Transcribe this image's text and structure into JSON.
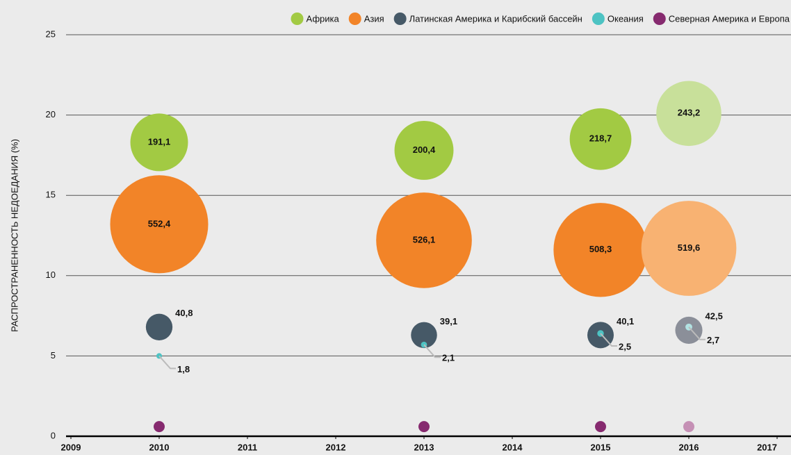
{
  "chart_data": {
    "type": "bubble",
    "y_label": "РАСПРОСТРАНЕННОСТЬ НЕДОЕДАНИЯ (%)",
    "x": [
      2010,
      2013,
      2015,
      2016
    ],
    "xlim": [
      2009,
      2017
    ],
    "xticks": [
      2009,
      2010,
      2011,
      2012,
      2013,
      2014,
      2015,
      2016,
      2017
    ],
    "ylim": [
      0,
      25
    ],
    "yticks": [
      0,
      5,
      10,
      15,
      20,
      25
    ],
    "grid": true,
    "legend": "top-right",
    "series": [
      {
        "name": "Африка",
        "color": "#a2ca43",
        "colors": [
          "#a2ca43",
          "#a2ca43",
          "#a2ca43",
          "#c8e09a"
        ],
        "values": [
          18.3,
          17.8,
          18.5,
          20.1
        ],
        "sizes": [
          191.1,
          200.4,
          218.7,
          243.2
        ],
        "value_labels": [
          "191,1",
          "200,4",
          "218,7",
          "243,2"
        ]
      },
      {
        "name": "Азия",
        "color": "#f28428",
        "colors": [
          "#f28428",
          "#f28428",
          "#f28428",
          "#f8b272"
        ],
        "values": [
          13.2,
          12.2,
          11.6,
          11.7
        ],
        "sizes": [
          552.4,
          526.1,
          508.3,
          519.6
        ],
        "value_labels": [
          "552,4",
          "526,1",
          "508,3",
          "519,6"
        ]
      },
      {
        "name": "Латинская Америка и Карибский бассейн",
        "color": "#465967",
        "colors": [
          "#465967",
          "#465967",
          "#465967",
          "#8b8f99"
        ],
        "values": [
          6.8,
          6.3,
          6.3,
          6.6
        ],
        "sizes": [
          40.8,
          39.1,
          40.1,
          42.5
        ],
        "value_labels": [
          "40,8",
          "39,1",
          "40,1",
          "42,5"
        ]
      },
      {
        "name": "Океания",
        "color": "#4dc3c3",
        "colors": [
          "#4dc3c3",
          "#4dc3c3",
          "#4dc3c3",
          "#b2e3e3"
        ],
        "values": [
          5.0,
          5.7,
          6.4,
          6.8
        ],
        "sizes": [
          1.8,
          2.1,
          2.5,
          2.7
        ],
        "value_labels": [
          "1,8",
          "2,1",
          "2,5",
          "2,7"
        ]
      },
      {
        "name": "Северная Америка и Европа",
        "color": "#862a6f",
        "colors": [
          "#862a6f",
          "#862a6f",
          "#862a6f",
          "#c590b5"
        ],
        "values": [
          0.6,
          0.6,
          0.6,
          0.6
        ]
      }
    ]
  }
}
